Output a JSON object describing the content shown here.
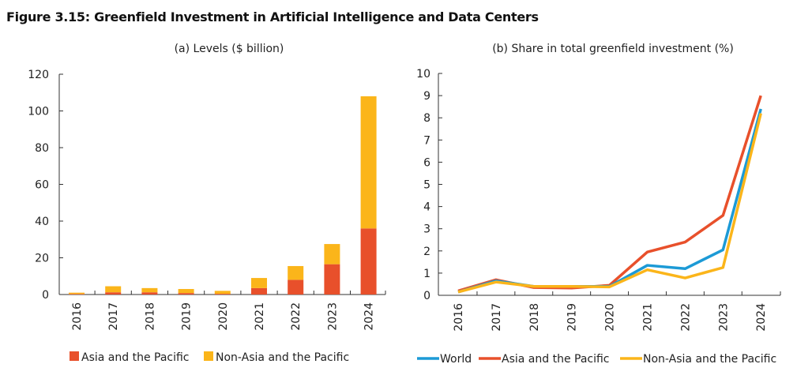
{
  "figure_title": "Figure 3.15: Greenfield Investment in Artificial Intelligence and Data Centers",
  "colors": {
    "asia": "#E8502B",
    "non_asia": "#FBB51A",
    "world": "#1C9AD6"
  },
  "chart_data": [
    {
      "type": "bar",
      "stacked": true,
      "title": "(a) Levels ($ billion)",
      "categories": [
        "2016",
        "2017",
        "2018",
        "2019",
        "2020",
        "2021",
        "2022",
        "2023",
        "2024"
      ],
      "series": [
        {
          "name": "Asia and the Pacific",
          "values": [
            0.3,
            1.2,
            1.2,
            0.8,
            0.4,
            3.5,
            8,
            16.5,
            36
          ]
        },
        {
          "name": "Non-Asia and the Pacific",
          "values": [
            0.7,
            3.3,
            2.3,
            2.2,
            1.6,
            5.5,
            7.5,
            11,
            72
          ]
        }
      ],
      "ylim": [
        0,
        120
      ],
      "yticks": [
        "0",
        "20",
        "40",
        "60",
        "80",
        "100",
        "120"
      ],
      "legend": "bottom"
    },
    {
      "type": "line",
      "title": "(b) Share in total greenfield investment (%)",
      "categories": [
        "2016",
        "2017",
        "2018",
        "2019",
        "2020",
        "2021",
        "2022",
        "2023",
        "2024"
      ],
      "series": [
        {
          "name": "World",
          "values": [
            0.15,
            0.65,
            0.4,
            0.4,
            0.4,
            1.35,
            1.2,
            2.05,
            8.4
          ]
        },
        {
          "name": "Asia and the Pacific",
          "values": [
            0.2,
            0.7,
            0.35,
            0.33,
            0.45,
            1.95,
            2.4,
            3.6,
            9.0
          ]
        },
        {
          "name": "Non-Asia and the Pacific",
          "values": [
            0.15,
            0.6,
            0.4,
            0.4,
            0.38,
            1.15,
            0.78,
            1.25,
            8.2
          ]
        }
      ],
      "ylim": [
        0,
        10
      ],
      "yticks": [
        "0",
        "1",
        "2",
        "3",
        "4",
        "5",
        "6",
        "7",
        "8",
        "9",
        "10"
      ],
      "legend": "bottom"
    }
  ]
}
